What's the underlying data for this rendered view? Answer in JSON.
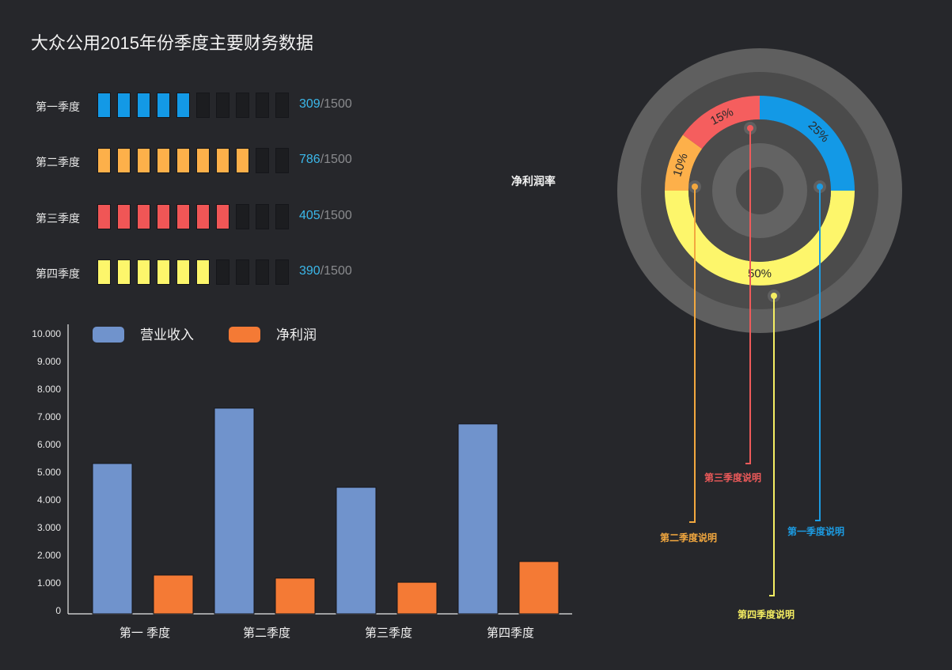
{
  "title": "大众公用2015年份季度主要财务数据",
  "progress": {
    "total_blocks": 10,
    "empty_color": "#1c1d20",
    "rows": [
      {
        "label": "第一季度",
        "value": "309",
        "total": "/1500",
        "filled": 5,
        "color": "#1399e6"
      },
      {
        "label": "第二季度",
        "value": "786",
        "total": "/1500",
        "filled": 8,
        "color": "#fdb04a"
      },
      {
        "label": "第三季度",
        "value": "405",
        "total": "/1500",
        "filled": 7,
        "color": "#f05656"
      },
      {
        "label": "第四季度",
        "value": "390",
        "total": "/1500",
        "filled": 6,
        "color": "#fdf66b"
      }
    ]
  },
  "donut": {
    "title": "净利润率",
    "segments": [
      {
        "label": "25%",
        "value": 25,
        "color": "#1399e6",
        "note": "第一季度说明"
      },
      {
        "label": "50%",
        "value": 50,
        "color": "#fdf66b",
        "note": "第四季度说明"
      },
      {
        "label": "10%",
        "value": 10,
        "color": "#fdb04a",
        "note": "第二季度说明"
      },
      {
        "label": "15%",
        "value": 15,
        "color": "#f55e5e",
        "note": "第三季度说明"
      }
    ]
  },
  "notes": {
    "q1": "第一季度说明",
    "q2": "第二季度说明",
    "q3": "第三季度说明",
    "q4": "第四季度说明"
  },
  "chart_data": [
    {
      "type": "bar",
      "title": "",
      "xlabel": "",
      "ylabel": "",
      "categories": [
        "第一 季度",
        "第二季度",
        "第三季度",
        "第四季度"
      ],
      "series": [
        {
          "name": "营业收入",
          "color": "#7093cc",
          "values": [
            5430,
            7430,
            4570,
            6860
          ]
        },
        {
          "name": "净利润",
          "color": "#f47a35",
          "values": [
            1400,
            1290,
            1140,
            1890
          ]
        }
      ],
      "yticks": [
        "0",
        "1.000",
        "2.000",
        "3.000",
        "4.000",
        "5.000",
        "6.000",
        "7.000",
        "8.000",
        "9.000",
        "10.000"
      ],
      "ylim": [
        0,
        10000
      ],
      "grid": false,
      "legend_position": "top"
    },
    {
      "type": "pie",
      "title": "净利润率",
      "categories": [
        "第一季度",
        "第四季度",
        "第二季度",
        "第三季度"
      ],
      "values": [
        25,
        50,
        10,
        15
      ],
      "labels": [
        "25%",
        "50%",
        "10%",
        "15%"
      ]
    },
    {
      "type": "bar",
      "title": "季度进度",
      "categories": [
        "第一季度",
        "第二季度",
        "第三季度",
        "第四季度"
      ],
      "values": [
        309,
        786,
        405,
        390
      ],
      "max": 1500
    }
  ]
}
